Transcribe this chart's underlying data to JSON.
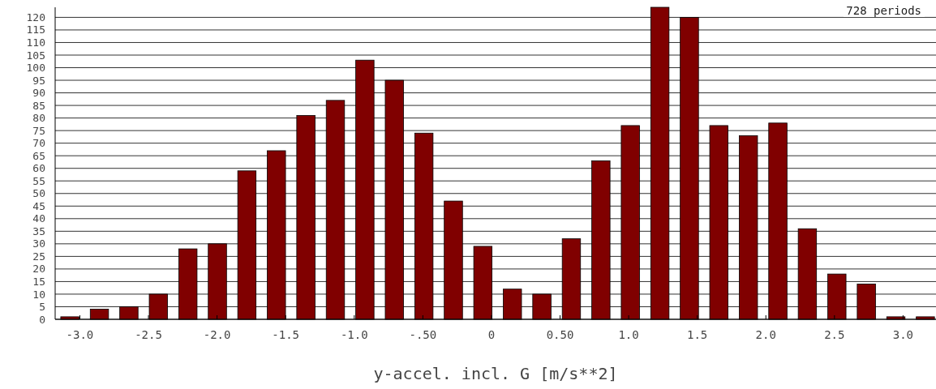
{
  "chart_data": {
    "type": "histogram",
    "xlabel": "y-accel. incl. G [m/s**2]",
    "annotations": [
      "728 periods"
    ],
    "bins": [
      -3.18,
      -2.965,
      -2.75,
      -2.535,
      -2.32,
      -2.105,
      -1.89,
      -1.675,
      -1.46,
      -1.245,
      -1.03,
      -0.815,
      -0.6,
      -0.385,
      -0.17,
      0.045,
      0.26,
      0.475,
      0.69,
      0.905,
      1.12,
      1.335,
      1.55,
      1.765,
      1.98,
      2.195,
      2.41,
      2.625,
      2.84,
      3.055,
      3.27
    ],
    "values": [
      1,
      4,
      5,
      10,
      28,
      30,
      59,
      67,
      81,
      87,
      103,
      95,
      74,
      47,
      29,
      12,
      10,
      32,
      63,
      77,
      124,
      120,
      77,
      73,
      78,
      36,
      18,
      14,
      1,
      1
    ],
    "color": "#800000",
    "xlim": [
      -3.18,
      3.24
    ],
    "ylim": [
      0,
      124
    ],
    "xticks": [
      {
        "value": -3,
        "label": "-3.0"
      },
      {
        "value": -2.5,
        "label": "-2.5"
      },
      {
        "value": -2,
        "label": "-2.0"
      },
      {
        "value": -1.5,
        "label": "-1.5"
      },
      {
        "value": -1,
        "label": "-1.0"
      },
      {
        "value": -0.5,
        "label": "-.50"
      },
      0,
      {
        "value": 0.5,
        "label": "0.50"
      },
      {
        "value": 1,
        "label": "1.0"
      },
      {
        "value": 1.5,
        "label": "1.5"
      },
      {
        "value": 2,
        "label": "2.0"
      },
      {
        "value": 2.5,
        "label": "2.5"
      },
      {
        "value": 3,
        "label": "3.0"
      }
    ],
    "yticks": [
      0,
      5,
      10,
      15,
      20,
      25,
      30,
      35,
      40,
      45,
      50,
      55,
      60,
      65,
      70,
      75,
      80,
      85,
      90,
      95,
      100,
      105,
      110,
      115,
      120
    ],
    "grid": "y"
  }
}
